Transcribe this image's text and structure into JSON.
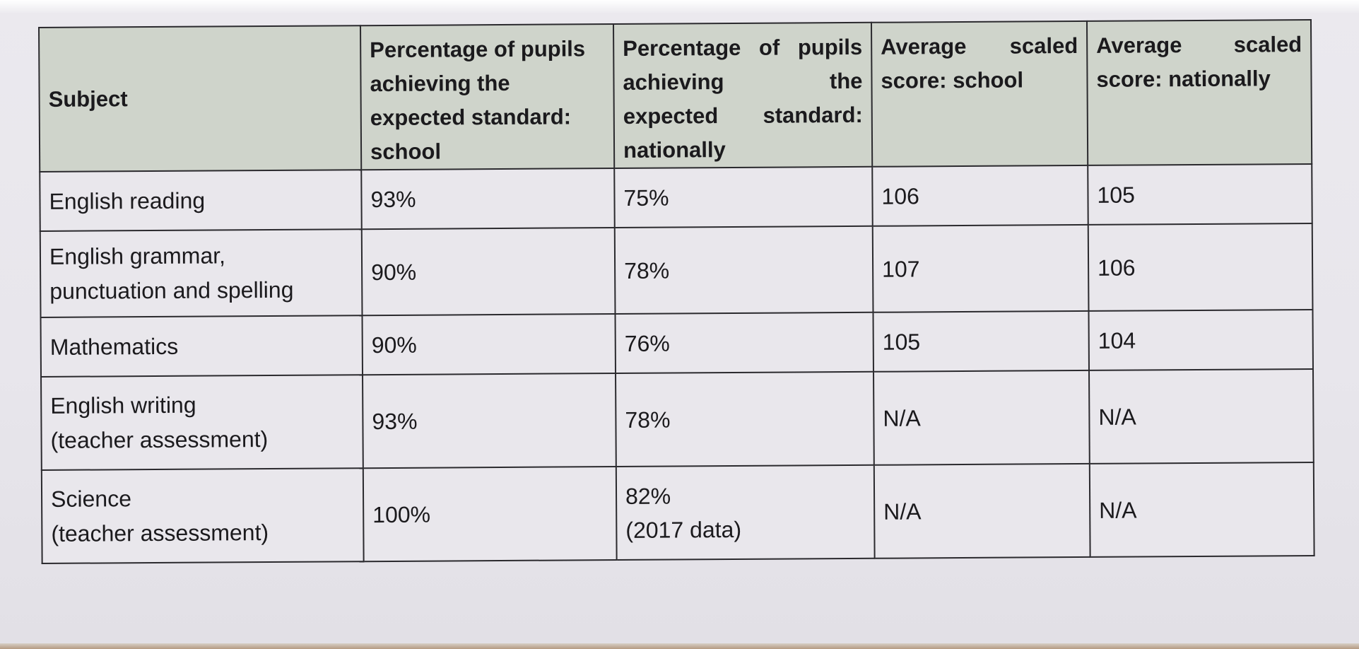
{
  "table": {
    "headers": [
      "Subject",
      "Percentage of pupils achieving the expected standard: school",
      "Percentage of pupils achieving the expected standard: nationally",
      "Average scaled score: school",
      "Average scaled score: nationally"
    ],
    "rows": [
      {
        "subject": [
          "English reading"
        ],
        "school_pct": "93%",
        "national_pct": [
          "75%"
        ],
        "school_score": "106",
        "national_score": "105"
      },
      {
        "subject": [
          "English grammar,",
          "punctuation and spelling"
        ],
        "school_pct": "90%",
        "national_pct": [
          "78%"
        ],
        "school_score": "107",
        "national_score": "106"
      },
      {
        "subject": [
          "Mathematics"
        ],
        "school_pct": "90%",
        "national_pct": [
          "76%"
        ],
        "school_score": "105",
        "national_score": "104"
      },
      {
        "subject": [
          "English writing",
          "(teacher assessment)"
        ],
        "school_pct": "93%",
        "national_pct": [
          "78%"
        ],
        "school_score": "N/A",
        "national_score": "N/A"
      },
      {
        "subject": [
          "Science",
          "(teacher assessment)"
        ],
        "school_pct": "100%",
        "national_pct": [
          "82%",
          "(2017 data)"
        ],
        "school_score": "N/A",
        "national_score": "N/A"
      }
    ]
  }
}
